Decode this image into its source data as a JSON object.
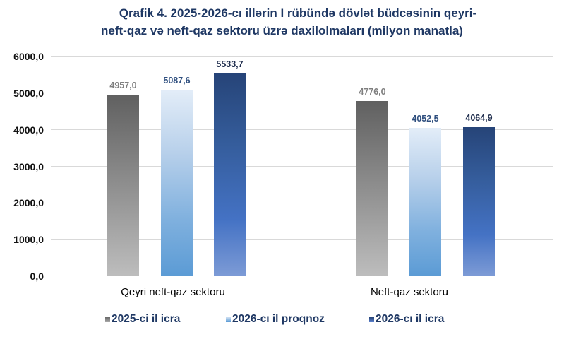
{
  "chart_data": {
    "type": "bar",
    "title": "Qrafik 4. 2025-2026-cı illərin I rübündə dövlət büdcəsinin qeyri-neft-qaz və neft-qaz sektoru üzrə daxilolmaları (milyon manatla)",
    "title_lines": [
      "Qrafik 4. 2025-2026-cı illərin I rübündə dövlət büdcəsinin qeyri-",
      "neft-qaz və neft-qaz sektoru üzrə daxilolmaları (milyon manatla)"
    ],
    "xlabel": "",
    "ylabel": "",
    "categories": [
      "Qeyri neft-qaz sektoru",
      "Neft-qaz sektoru"
    ],
    "series": [
      {
        "name": "2025-ci il icra",
        "values": [
          4957.0,
          4776.0
        ],
        "labels": [
          "4957,0",
          "4776,0"
        ],
        "color": "#808080"
      },
      {
        "name": "2026-cı il proqnoz",
        "values": [
          5087.6,
          4052.5
        ],
        "labels": [
          "5087,6",
          "4052,5"
        ],
        "color": "#5b9bd5"
      },
      {
        "name": "2026-cı il icra",
        "values": [
          5533.7,
          4064.9
        ],
        "labels": [
          "5533,7",
          "4064,9"
        ],
        "color": "#2f5597"
      }
    ],
    "ylim": [
      0,
      6000
    ],
    "yticks": [
      0,
      1000,
      2000,
      3000,
      4000,
      5000,
      6000
    ],
    "ytick_labels": [
      "0,0",
      "1000,0",
      "2000,0",
      "3000,0",
      "4000,0",
      "5000,0",
      "6000,0"
    ],
    "grid": true,
    "legend_position": "bottom"
  }
}
